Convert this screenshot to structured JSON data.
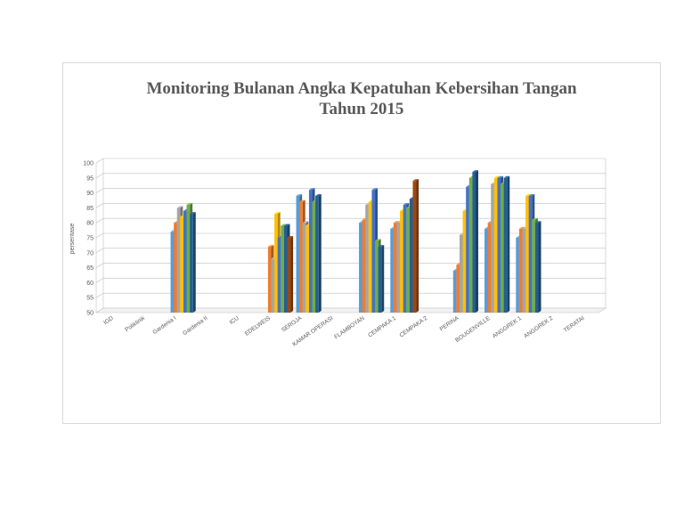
{
  "chart_data": {
    "type": "bar",
    "title_lines": [
      "Monitoring Bulanan Angka Kepatuhan Kebersihan Tangan",
      "Tahun 2015"
    ],
    "ylabel": "persentase",
    "xlabel": "",
    "ylim": [
      50,
      100
    ],
    "yticks": [
      50,
      55,
      60,
      65,
      70,
      75,
      80,
      85,
      90,
      95,
      100
    ],
    "grid": true,
    "legend": "none",
    "three_d": true,
    "categories": [
      "IGD",
      "Poliklinik",
      "Gardenia I",
      "Gardenia II",
      "ICU",
      "EDELWEIS",
      "SEROJA",
      "KAMAR OPERASI",
      "FLAMBOYAN",
      "CEMPAKA 1",
      "CEMPAKA 2",
      "PERINA",
      "BOUGENVILLE",
      "ANGGREK 1",
      "ANGGREK 2",
      "TERATAI"
    ],
    "series_colors": [
      "#5b9bd5",
      "#ed7d31",
      "#a5a5a5",
      "#ffc000",
      "#4472c4",
      "#70ad47",
      "#255e91",
      "#9e480e"
    ],
    "series": [
      {
        "values": [
          null,
          null,
          77,
          null,
          null,
          50,
          89,
          null,
          80,
          78,
          null,
          64,
          78,
          75,
          null,
          null
        ]
      },
      {
        "values": [
          null,
          null,
          80,
          null,
          null,
          72,
          87,
          null,
          81,
          80,
          null,
          66,
          80,
          78,
          null,
          null
        ]
      },
      {
        "values": [
          null,
          null,
          85,
          null,
          null,
          68,
          80,
          null,
          86,
          80,
          null,
          76,
          93,
          78,
          null,
          null
        ]
      },
      {
        "values": [
          null,
          null,
          82,
          null,
          null,
          83,
          79,
          null,
          87,
          84,
          null,
          84,
          95,
          89,
          null,
          null
        ]
      },
      {
        "values": [
          null,
          null,
          84,
          null,
          null,
          75,
          91,
          null,
          91,
          86,
          null,
          92,
          95,
          89,
          null,
          null
        ]
      },
      {
        "values": [
          null,
          null,
          86,
          null,
          null,
          79,
          87,
          null,
          74,
          85,
          null,
          95,
          93,
          81,
          null,
          null
        ]
      },
      {
        "values": [
          null,
          null,
          83,
          null,
          null,
          79,
          89,
          null,
          72,
          88,
          null,
          97,
          95,
          80,
          null,
          null
        ]
      },
      {
        "values": [
          null,
          null,
          null,
          null,
          null,
          75,
          null,
          null,
          null,
          94,
          null,
          null,
          null,
          null,
          null,
          null
        ]
      }
    ]
  }
}
